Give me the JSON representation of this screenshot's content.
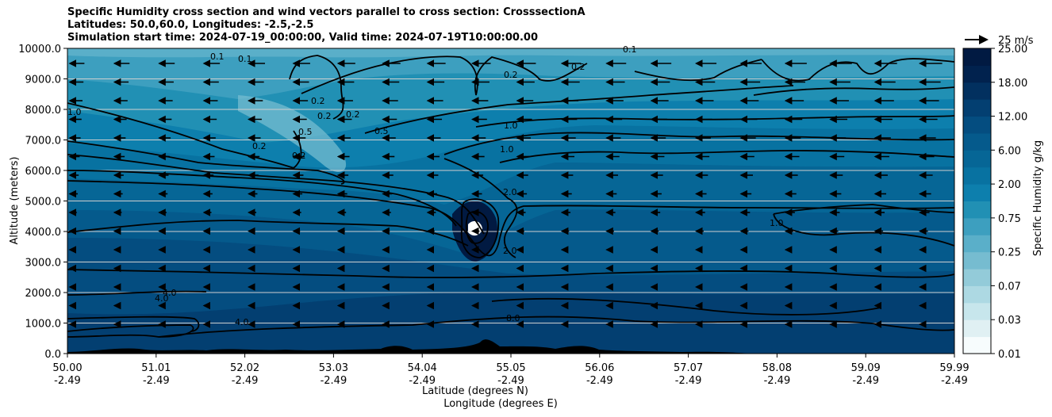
{
  "chart_data": {
    "type": "contour",
    "title": [
      "Specific Humidity cross section and wind vectors parallel to cross section: CrosssectionA",
      "Latitudes: 50.0,60.0, Longitudes: -2.5,-2.5",
      "Simulation start time: 2024-07-19_00:00:00, Valid time: 2024-07-19T10:00:00.00"
    ],
    "ylabel": "Altitude (meters)",
    "xlabel_lat": "Latitude (degrees N)",
    "xlabel_lon": "Longitude (degrees E)",
    "ylim": [
      0,
      10000
    ],
    "xlim": [
      50.0,
      59.99
    ],
    "y_ticks": [
      "0.0",
      "1000.0",
      "2000.0",
      "3000.0",
      "4000.0",
      "5000.0",
      "6000.0",
      "7000.0",
      "8000.0",
      "9000.0",
      "10000.0"
    ],
    "x_ticks": [
      {
        "lat": "50.00",
        "lon": "-2.49"
      },
      {
        "lat": "51.01",
        "lon": "-2.49"
      },
      {
        "lat": "52.02",
        "lon": "-2.49"
      },
      {
        "lat": "53.03",
        "lon": "-2.49"
      },
      {
        "lat": "54.04",
        "lon": "-2.49"
      },
      {
        "lat": "55.05",
        "lon": "-2.49"
      },
      {
        "lat": "56.06",
        "lon": "-2.49"
      },
      {
        "lat": "57.07",
        "lon": "-2.49"
      },
      {
        "lat": "58.08",
        "lon": "-2.49"
      },
      {
        "lat": "59.09",
        "lon": "-2.49"
      },
      {
        "lat": "59.99",
        "lon": "-2.49"
      }
    ],
    "grid": "horizontal",
    "colorbar": {
      "label": "Specific Humidity g/kg",
      "ticks": [
        "0.01",
        "0.03",
        "0.07",
        "0.25",
        "0.75",
        "2.00",
        "6.00",
        "12.00",
        "18.00",
        "25.00"
      ],
      "colors": [
        "#f7fcfd",
        "#e0f0f3",
        "#c7e6ec",
        "#add9e3",
        "#93cbd9",
        "#76bcd0",
        "#5aafc9",
        "#3d9fbf",
        "#2190b4",
        "#0d7fad",
        "#0872a1",
        "#066696",
        "#055a8c",
        "#044d80",
        "#033f71",
        "#02305f",
        "#01224e",
        "#011a42"
      ]
    },
    "quiver_key": {
      "label": "25 m/s"
    },
    "contour_labels": [
      "0.1",
      "0.1",
      "0.1",
      "0.2",
      "0.2",
      "0.2",
      "0.2",
      "0.2",
      "0.2",
      "0.2",
      "0.5",
      "0.5",
      "1.0",
      "1.0",
      "1.0",
      "2.0",
      "2.0",
      "4.0",
      "4.0",
      "4.0",
      "8.0",
      "1.0"
    ]
  }
}
